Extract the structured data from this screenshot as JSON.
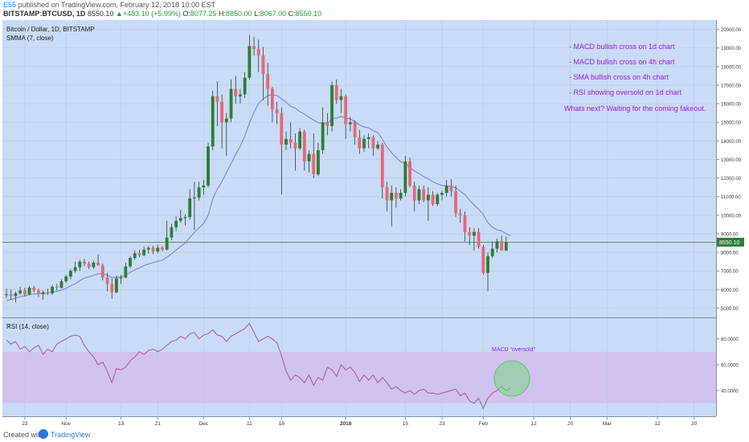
{
  "header": {
    "user": "E55",
    "published": "published on TradingView.com, February 12, 2018 10:00 EST",
    "symbol": "BITSTAMP:BTCUSD, 1D",
    "last": "8550.10",
    "change": "+483.10 (+5.99%)",
    "open_label": "O:",
    "open": "8077.25",
    "high_label": "H:",
    "high": "8850.00",
    "low_label": "L:",
    "low": "8067.00",
    "close_label": "C:",
    "close": "8550.10"
  },
  "colors": {
    "background": "#c9dbf5",
    "up_candle": "#2e7d32",
    "down_candle": "#e8667a",
    "smma_line": "#6f7fd6",
    "rsi_line": "#a05aa8",
    "rsi_band": "#d2c2ef",
    "annotation": "#9b22d6",
    "circle": "#78d882"
  },
  "chart_data": [
    {
      "type": "candlestick",
      "title": "Bitcoin / Dollar, 1D, BITSTAMP",
      "indicator": "SMMA (7, close)",
      "ylim": [
        4500,
        20500
      ],
      "y_ticks": [
        "20000.00",
        "19000.00",
        "18000.00",
        "17000.00",
        "16000.00",
        "15000.00",
        "14000.00",
        "13000.00",
        "12000.00",
        "11000.00",
        "10000.00",
        "9000.00",
        "8000.00",
        "7000.00",
        "6000.00",
        "5000.00"
      ],
      "last_price_label": "8550.10",
      "x_ticks": [
        {
          "label": "23",
          "index": 4
        },
        {
          "label": "Nov",
          "index": 13
        },
        {
          "label": "13",
          "index": 25
        },
        {
          "label": "21",
          "index": 33
        },
        {
          "label": "Dec",
          "index": 43
        },
        {
          "label": "11",
          "index": 53
        },
        {
          "label": "18",
          "index": 60
        },
        {
          "label": "2018",
          "index": 74
        },
        {
          "label": "15",
          "index": 87
        },
        {
          "label": "23",
          "index": 95
        },
        {
          "label": "Feb",
          "index": 104
        },
        {
          "label": "12",
          "index": 115
        },
        {
          "label": "20",
          "index": 123
        },
        {
          "label": "Mar",
          "index": 131
        },
        {
          "label": "12",
          "index": 142
        },
        {
          "label": "20",
          "index": 150
        }
      ],
      "candles": [
        {
          "o": 5700,
          "h": 6050,
          "l": 5550,
          "c": 5750
        },
        {
          "o": 5750,
          "h": 6000,
          "l": 5450,
          "c": 5650
        },
        {
          "o": 5650,
          "h": 5900,
          "l": 5300,
          "c": 5800
        },
        {
          "o": 5800,
          "h": 6150,
          "l": 5700,
          "c": 5950
        },
        {
          "o": 5950,
          "h": 6100,
          "l": 5650,
          "c": 5750
        },
        {
          "o": 5750,
          "h": 6200,
          "l": 5700,
          "c": 6100
        },
        {
          "o": 6100,
          "h": 6200,
          "l": 5850,
          "c": 5950
        },
        {
          "o": 5950,
          "h": 6050,
          "l": 5600,
          "c": 5750
        },
        {
          "o": 5750,
          "h": 5950,
          "l": 5450,
          "c": 5850
        },
        {
          "o": 5850,
          "h": 6050,
          "l": 5700,
          "c": 5800
        },
        {
          "o": 5800,
          "h": 6250,
          "l": 5700,
          "c": 6150
        },
        {
          "o": 6150,
          "h": 6300,
          "l": 5950,
          "c": 6100
        },
        {
          "o": 6100,
          "h": 6550,
          "l": 6050,
          "c": 6450
        },
        {
          "o": 6450,
          "h": 6800,
          "l": 6350,
          "c": 6700
        },
        {
          "o": 6700,
          "h": 7100,
          "l": 6550,
          "c": 7000
        },
        {
          "o": 7000,
          "h": 7500,
          "l": 6900,
          "c": 7200
        },
        {
          "o": 7200,
          "h": 7600,
          "l": 7000,
          "c": 7500
        },
        {
          "o": 7500,
          "h": 7650,
          "l": 7250,
          "c": 7400
        },
        {
          "o": 7400,
          "h": 7500,
          "l": 7100,
          "c": 7200
        },
        {
          "o": 7200,
          "h": 7550,
          "l": 7100,
          "c": 7450
        },
        {
          "o": 7450,
          "h": 7900,
          "l": 7300,
          "c": 7300
        },
        {
          "o": 7300,
          "h": 7400,
          "l": 6500,
          "c": 6650
        },
        {
          "o": 6650,
          "h": 6900,
          "l": 5900,
          "c": 6300
        },
        {
          "o": 6300,
          "h": 6600,
          "l": 5500,
          "c": 5850
        },
        {
          "o": 5850,
          "h": 6750,
          "l": 5800,
          "c": 6600
        },
        {
          "o": 6600,
          "h": 6800,
          "l": 6300,
          "c": 6650
        },
        {
          "o": 6650,
          "h": 7450,
          "l": 6600,
          "c": 7250
        },
        {
          "o": 7250,
          "h": 7800,
          "l": 7150,
          "c": 7700
        },
        {
          "o": 7700,
          "h": 8100,
          "l": 7600,
          "c": 7950
        },
        {
          "o": 7950,
          "h": 8150,
          "l": 7750,
          "c": 7850
        },
        {
          "o": 7850,
          "h": 8300,
          "l": 7800,
          "c": 8150
        },
        {
          "o": 8150,
          "h": 8350,
          "l": 7950,
          "c": 8250
        },
        {
          "o": 8250,
          "h": 8350,
          "l": 7900,
          "c": 8050
        },
        {
          "o": 8050,
          "h": 8400,
          "l": 7950,
          "c": 8250
        },
        {
          "o": 8250,
          "h": 8350,
          "l": 8050,
          "c": 8150
        },
        {
          "o": 8150,
          "h": 9700,
          "l": 8100,
          "c": 8800
        },
        {
          "o": 8800,
          "h": 9550,
          "l": 8650,
          "c": 9350
        },
        {
          "o": 9350,
          "h": 9950,
          "l": 9150,
          "c": 9700
        },
        {
          "o": 9700,
          "h": 10300,
          "l": 9600,
          "c": 9850
        },
        {
          "o": 9850,
          "h": 10050,
          "l": 9450,
          "c": 9900
        },
        {
          "o": 9900,
          "h": 11400,
          "l": 9750,
          "c": 10900
        },
        {
          "o": 10900,
          "h": 11800,
          "l": 9200,
          "c": 10950
        },
        {
          "o": 10950,
          "h": 11800,
          "l": 10800,
          "c": 11500
        },
        {
          "o": 11500,
          "h": 11900,
          "l": 11100,
          "c": 11600
        },
        {
          "o": 11600,
          "h": 13900,
          "l": 11500,
          "c": 13700
        },
        {
          "o": 13700,
          "h": 16700,
          "l": 13500,
          "c": 16400
        },
        {
          "o": 16400,
          "h": 17200,
          "l": 14800,
          "c": 16100
        },
        {
          "o": 16100,
          "h": 16500,
          "l": 13600,
          "c": 15000
        },
        {
          "o": 15000,
          "h": 15500,
          "l": 13200,
          "c": 15200
        },
        {
          "o": 15200,
          "h": 17300,
          "l": 15000,
          "c": 16800
        },
        {
          "o": 16800,
          "h": 17500,
          "l": 16000,
          "c": 16400
        },
        {
          "o": 16400,
          "h": 16800,
          "l": 16000,
          "c": 16500
        },
        {
          "o": 16500,
          "h": 17700,
          "l": 16300,
          "c": 17400
        },
        {
          "o": 17400,
          "h": 19700,
          "l": 17300,
          "c": 19100
        },
        {
          "o": 19100,
          "h": 19600,
          "l": 18600,
          "c": 18950
        },
        {
          "o": 18950,
          "h": 19450,
          "l": 17700,
          "c": 18600
        },
        {
          "o": 18600,
          "h": 19050,
          "l": 16200,
          "c": 17600
        },
        {
          "o": 17600,
          "h": 18200,
          "l": 15900,
          "c": 16800
        },
        {
          "o": 16800,
          "h": 16900,
          "l": 15000,
          "c": 15700
        },
        {
          "o": 15700,
          "h": 16100,
          "l": 14900,
          "c": 15500
        },
        {
          "o": 15500,
          "h": 15800,
          "l": 11100,
          "c": 13800
        },
        {
          "o": 13800,
          "h": 14500,
          "l": 13500,
          "c": 14100
        },
        {
          "o": 14100,
          "h": 15000,
          "l": 13600,
          "c": 13900
        },
        {
          "o": 13900,
          "h": 14400,
          "l": 12400,
          "c": 13600
        },
        {
          "o": 13600,
          "h": 14700,
          "l": 13500,
          "c": 14500
        },
        {
          "o": 14500,
          "h": 14600,
          "l": 12400,
          "c": 12900
        },
        {
          "o": 12900,
          "h": 13500,
          "l": 12300,
          "c": 13300
        },
        {
          "o": 13300,
          "h": 14400,
          "l": 12000,
          "c": 12200
        },
        {
          "o": 12200,
          "h": 13900,
          "l": 12100,
          "c": 13500
        },
        {
          "o": 13500,
          "h": 15800,
          "l": 13300,
          "c": 15000
        },
        {
          "o": 15000,
          "h": 15500,
          "l": 14300,
          "c": 14800
        },
        {
          "o": 14800,
          "h": 17200,
          "l": 14500,
          "c": 17000
        },
        {
          "o": 17000,
          "h": 17300,
          "l": 16000,
          "c": 16200
        },
        {
          "o": 16200,
          "h": 16800,
          "l": 15500,
          "c": 16400
        },
        {
          "o": 16400,
          "h": 16500,
          "l": 14100,
          "c": 14900
        },
        {
          "o": 14900,
          "h": 15300,
          "l": 14500,
          "c": 15000
        },
        {
          "o": 15000,
          "h": 15100,
          "l": 13800,
          "c": 14200
        },
        {
          "o": 14200,
          "h": 14600,
          "l": 13300,
          "c": 13600
        },
        {
          "o": 13600,
          "h": 14300,
          "l": 13400,
          "c": 14100
        },
        {
          "o": 14100,
          "h": 14400,
          "l": 13600,
          "c": 14200
        },
        {
          "o": 14200,
          "h": 14300,
          "l": 13200,
          "c": 13600
        },
        {
          "o": 13600,
          "h": 14000,
          "l": 13500,
          "c": 13800
        },
        {
          "o": 13800,
          "h": 13900,
          "l": 10900,
          "c": 11500
        },
        {
          "o": 11500,
          "h": 11800,
          "l": 10200,
          "c": 10800
        },
        {
          "o": 10800,
          "h": 11600,
          "l": 9400,
          "c": 11200
        },
        {
          "o": 11200,
          "h": 11500,
          "l": 10400,
          "c": 10900
        },
        {
          "o": 10900,
          "h": 11400,
          "l": 10800,
          "c": 11200
        },
        {
          "o": 11200,
          "h": 13200,
          "l": 11000,
          "c": 12900
        },
        {
          "o": 12900,
          "h": 13100,
          "l": 11500,
          "c": 11600
        },
        {
          "o": 11600,
          "h": 11800,
          "l": 10200,
          "c": 10800
        },
        {
          "o": 10800,
          "h": 11600,
          "l": 10600,
          "c": 11400
        },
        {
          "o": 11400,
          "h": 11600,
          "l": 10700,
          "c": 10800
        },
        {
          "o": 10800,
          "h": 11500,
          "l": 9700,
          "c": 11100
        },
        {
          "o": 11100,
          "h": 11300,
          "l": 10500,
          "c": 10600
        },
        {
          "o": 10600,
          "h": 11200,
          "l": 10500,
          "c": 11100
        },
        {
          "o": 11100,
          "h": 11300,
          "l": 10800,
          "c": 11200
        },
        {
          "o": 11200,
          "h": 11900,
          "l": 11000,
          "c": 11600
        },
        {
          "o": 11600,
          "h": 11950,
          "l": 11000,
          "c": 11300
        },
        {
          "o": 11300,
          "h": 11600,
          "l": 9900,
          "c": 10100
        },
        {
          "o": 10100,
          "h": 10350,
          "l": 9600,
          "c": 10000
        },
        {
          "o": 10000,
          "h": 10200,
          "l": 8600,
          "c": 9100
        },
        {
          "o": 9100,
          "h": 9350,
          "l": 8400,
          "c": 8900
        },
        {
          "o": 8900,
          "h": 9300,
          "l": 8100,
          "c": 9100
        },
        {
          "o": 9100,
          "h": 9300,
          "l": 8200,
          "c": 8300
        },
        {
          "o": 8300,
          "h": 8400,
          "l": 6800,
          "c": 6900
        },
        {
          "o": 6900,
          "h": 8000,
          "l": 5900,
          "c": 7800
        },
        {
          "o": 7800,
          "h": 8600,
          "l": 7700,
          "c": 8200
        },
        {
          "o": 8200,
          "h": 8750,
          "l": 8000,
          "c": 8600
        },
        {
          "o": 8600,
          "h": 8900,
          "l": 8100,
          "c": 8100
        },
        {
          "o": 8100,
          "h": 8850,
          "l": 8067,
          "c": 8550
        }
      ],
      "smma": [
        5400,
        5470,
        5540,
        5610,
        5660,
        5720,
        5760,
        5780,
        5800,
        5810,
        5860,
        5900,
        5970,
        6060,
        6200,
        6310,
        6480,
        6620,
        6690,
        6760,
        6850,
        6840,
        6780,
        6650,
        6650,
        6680,
        6780,
        6920,
        7060,
        7170,
        7290,
        7380,
        7450,
        7520,
        7580,
        7740,
        7930,
        8130,
        8320,
        8500,
        8800,
        9070,
        9320,
        9550,
        9990,
        10880,
        11410,
        11810,
        12300,
        12760,
        13280,
        13710,
        14270,
        14960,
        15540,
        16030,
        16250,
        16440,
        16480,
        16450,
        16260,
        16080,
        15860,
        15760,
        15570,
        15450,
        15270,
        15120,
        14980,
        14960,
        14920,
        15200,
        15230,
        15320,
        15230,
        15180,
        15040,
        14850,
        14750,
        14700,
        14550,
        14450,
        14090,
        13670,
        13370,
        13100,
        12880,
        12800,
        12580,
        12380,
        12240,
        12080,
        11950,
        11800,
        11690,
        11610,
        11570,
        11530,
        11480,
        11290,
        11110,
        10820,
        10550,
        10330,
        10050,
        9600,
        9360,
        9210,
        9160,
        9000,
        8900
      ]
    },
    {
      "type": "line",
      "title": "RSI (14, close)",
      "ylim": [
        20,
        96
      ],
      "y_ticks": [
        "80.0000",
        "60.0000",
        "40.0000"
      ],
      "band": [
        30,
        70
      ],
      "annotation": "MACD \"oversold\"",
      "values": [
        79,
        76,
        78,
        72,
        74,
        70,
        73,
        75,
        68,
        72,
        70,
        76,
        78,
        80,
        82,
        83,
        82,
        75,
        70,
        66,
        60,
        62,
        55,
        46,
        57,
        56,
        58,
        63,
        66,
        70,
        68,
        71,
        72,
        70,
        72,
        75,
        78,
        79,
        82,
        80,
        84,
        85,
        80,
        83,
        84,
        87,
        83,
        82,
        78,
        82,
        84,
        86,
        88,
        92,
        85,
        78,
        80,
        82,
        80,
        77,
        67,
        55,
        48,
        52,
        50,
        46,
        52,
        44,
        50,
        48,
        58,
        56,
        51,
        60,
        56,
        58,
        54,
        47,
        52,
        48,
        52,
        46,
        50,
        46,
        41,
        43,
        40,
        38,
        40,
        37,
        40,
        41,
        38,
        38,
        37,
        38,
        39,
        40,
        41,
        36,
        38,
        32,
        30,
        34,
        26,
        34,
        38,
        40,
        43,
        40,
        42
      ]
    }
  ],
  "annotations": [
    "- MACD bullish cross on 1d chart",
    "- MACD bullish cross on 4h chart",
    "- SMA bullish cross on 4h chart",
    "- RSI showing oversold on 1d chart",
    "Whats next? Waiting for the coming fakeout."
  ],
  "footer": {
    "created_with": "Created with",
    "brand": "TradingView"
  }
}
